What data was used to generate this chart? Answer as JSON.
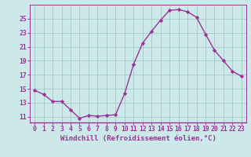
{
  "x": [
    0,
    1,
    2,
    3,
    4,
    5,
    6,
    7,
    8,
    9,
    10,
    11,
    12,
    13,
    14,
    15,
    16,
    17,
    18,
    19,
    20,
    21,
    22,
    23
  ],
  "y": [
    14.8,
    14.2,
    13.2,
    13.2,
    12.0,
    10.8,
    11.2,
    11.1,
    11.2,
    11.3,
    14.3,
    18.5,
    21.5,
    23.2,
    24.8,
    26.2,
    26.3,
    26.0,
    25.2,
    22.8,
    20.5,
    19.0,
    17.5,
    16.8
  ],
  "line_color": "#993399",
  "marker": "D",
  "marker_size": 2.2,
  "bg_color": "#cce8e8",
  "grid_color": "#aacccc",
  "xlabel": "Windchill (Refroidissement éolien,°C)",
  "xlabel_fontsize": 6.5,
  "xlim": [
    -0.5,
    23.5
  ],
  "ylim": [
    10.2,
    27.0
  ],
  "yticks": [
    11,
    13,
    15,
    17,
    19,
    21,
    23,
    25
  ],
  "xticks": [
    0,
    1,
    2,
    3,
    4,
    5,
    6,
    7,
    8,
    9,
    10,
    11,
    12,
    13,
    14,
    15,
    16,
    17,
    18,
    19,
    20,
    21,
    22,
    23
  ],
  "tick_fontsize": 5.8,
  "line_width": 1.0,
  "spine_color": "#993399"
}
